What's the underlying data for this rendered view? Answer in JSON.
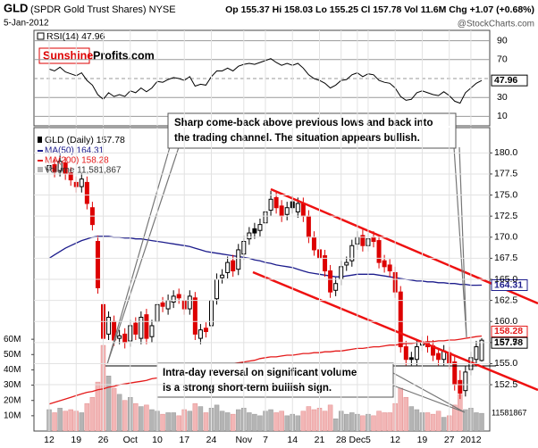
{
  "header": {
    "title": "GLD",
    "subtitle": "(SPDR Gold Trust Shares) NYSE",
    "date": "5-Jan-2012",
    "quote": "Op 155.37 Hi 158.03 Lo 155.25 Cl 157.78 Vol 11.6M Chg +1.07 (+0.68%)",
    "watermark": "@StockCharts.com"
  },
  "logo": {
    "part1": "Sunshine",
    "part2": "Profits.com"
  },
  "annotations": [
    {
      "lines": [
        "Sharp come-back above previous lows and back into",
        "the trading channel. The situation appears bullish."
      ]
    },
    {
      "lines": [
        "Intra-day reversal on significant volume",
        "is a strong short-term bullish sign."
      ]
    }
  ],
  "chart_data": {
    "type": "candlestick",
    "name": "GLD (Daily) 157.78",
    "up_color": "#000000",
    "down_color": "#dd0000",
    "categories": [
      "12",
      null,
      null,
      null,
      null,
      "19",
      null,
      null,
      null,
      null,
      "26",
      null,
      null,
      null,
      null,
      "Oct",
      null,
      null,
      null,
      null,
      "10",
      null,
      null,
      null,
      null,
      "17",
      null,
      null,
      null,
      null,
      "24",
      null,
      null,
      null,
      null,
      null,
      "Nov",
      null,
      null,
      null,
      "7",
      null,
      null,
      null,
      null,
      "14",
      null,
      null,
      null,
      null,
      "21",
      null,
      null,
      null,
      "28",
      null,
      null,
      "Dec",
      null,
      "5",
      null,
      null,
      null,
      null,
      "12",
      null,
      null,
      null,
      null,
      "19",
      null,
      null,
      null,
      null,
      "27",
      null,
      null,
      null,
      "2012",
      null,
      null
    ],
    "open": [
      178.0,
      178.6,
      177.9,
      178.8,
      177.6,
      176.5,
      176.0,
      176.5,
      173.5,
      169.5,
      162.0,
      158.5,
      160.0,
      158.0,
      158.5,
      157.7,
      159.8,
      158.0,
      160.8,
      158.2,
      160.0,
      162.2,
      161.5,
      162.3,
      163.2,
      162.5,
      161.5,
      162.8,
      158.0,
      159.2,
      159.5,
      162.7,
      165.2,
      165.8,
      167.2,
      166.2,
      168.0,
      169.8,
      171.0,
      170.8,
      171.7,
      173.2,
      174.7,
      173.7,
      172.7,
      174.2,
      173.0,
      174.0,
      172.5,
      170.0,
      168.5,
      167.8,
      166.0,
      163.7,
      165.0,
      166.7,
      167.2,
      169.2,
      170.2,
      169.0,
      170.0,
      169.6,
      167.2,
      166.7,
      165.8,
      163.5,
      157.0,
      155.7,
      155.5,
      157.2,
      157.6,
      157.1,
      156.2,
      155.5,
      156.3,
      155.2,
      153.0,
      151.8,
      154.3,
      155.5,
      155.37
    ],
    "high": [
      179.2,
      179.3,
      179.7,
      179.5,
      178.3,
      177.2,
      177.6,
      177.2,
      174.2,
      170.2,
      163.5,
      161.2,
      160.7,
      159.0,
      159.2,
      160.2,
      160.5,
      161.2,
      161.5,
      160.2,
      162.7,
      162.9,
      163.2,
      163.7,
      163.9,
      163.2,
      163.7,
      163.5,
      159.7,
      159.9,
      163.2,
      165.7,
      166.2,
      167.7,
      167.9,
      169.2,
      170.2,
      171.2,
      171.7,
      172.2,
      173.7,
      175.5,
      175.4,
      174.4,
      174.2,
      174.9,
      174.7,
      174.7,
      173.2,
      170.7,
      169.2,
      168.5,
      166.7,
      165.2,
      167.2,
      167.7,
      169.7,
      170.7,
      170.9,
      170.5,
      170.7,
      170.3,
      167.9,
      167.4,
      166.5,
      164.2,
      157.7,
      156.4,
      157.7,
      158.2,
      158.3,
      157.8,
      156.9,
      157.2,
      157.0,
      155.9,
      154.2,
      154.7,
      156.4,
      157.7,
      158.03
    ],
    "low": [
      177.3,
      177.1,
      177.2,
      176.8,
      176.1,
      175.3,
      175.3,
      173.3,
      170.8,
      163.3,
      153.5,
      157.8,
      157.1,
      157.3,
      156.8,
      157.0,
      157.8,
      157.3,
      157.3,
      157.5,
      159.3,
      161.1,
      160.8,
      161.6,
      162.1,
      160.8,
      160.8,
      157.8,
      157.3,
      158.1,
      158.8,
      162.0,
      164.5,
      165.1,
      165.3,
      165.5,
      167.3,
      169.1,
      169.8,
      170.1,
      171.0,
      172.5,
      172.8,
      171.8,
      172.0,
      172.8,
      172.3,
      171.8,
      169.3,
      167.8,
      166.8,
      165.3,
      162.8,
      163.0,
      164.3,
      166.0,
      166.5,
      168.5,
      168.3,
      168.3,
      168.8,
      166.3,
      165.8,
      165.3,
      162.8,
      156.3,
      154.8,
      154.8,
      154.8,
      156.5,
      156.3,
      155.3,
      154.8,
      154.8,
      154.3,
      151.8,
      150.8,
      151.1,
      153.6,
      154.8,
      155.25
    ],
    "close": [
      178.5,
      177.8,
      179.0,
      177.5,
      176.8,
      176.0,
      176.9,
      174.0,
      171.5,
      164.0,
      158.0,
      160.5,
      157.8,
      158.3,
      157.5,
      159.5,
      158.5,
      160.5,
      158.0,
      159.5,
      162.0,
      161.8,
      162.5,
      163.0,
      162.8,
      161.5,
      163.0,
      158.5,
      159.0,
      158.8,
      162.5,
      165.0,
      165.5,
      167.0,
      166.0,
      168.5,
      169.5,
      170.5,
      170.5,
      171.5,
      173.0,
      174.5,
      173.5,
      172.5,
      173.5,
      173.5,
      174.0,
      172.5,
      170.0,
      168.5,
      167.5,
      166.0,
      163.5,
      164.5,
      166.5,
      167.0,
      169.0,
      170.0,
      169.0,
      169.8,
      169.5,
      167.0,
      166.5,
      166.0,
      163.5,
      157.0,
      155.5,
      155.5,
      157.0,
      157.5,
      157.0,
      156.0,
      155.5,
      156.5,
      155.0,
      152.5,
      151.5,
      154.0,
      155.7,
      157.0,
      157.78
    ],
    "ylim": [
      147,
      183
    ],
    "yticks": [
      152.5,
      {
        "value": 155,
        "label": "155.0"
      },
      157.5,
      {
        "value": 160,
        "label": "160.0"
      },
      162.5,
      {
        "value": 165,
        "label": "165.0"
      },
      167.5,
      {
        "value": 170,
        "label": "170.0"
      },
      172.5,
      {
        "value": 175,
        "label": "175.0"
      },
      177.5,
      {
        "value": 180,
        "label": "180.0"
      }
    ],
    "grid": true,
    "overlays": [
      {
        "name": "MA(50) 164.31",
        "color": "#1c1c8c",
        "values": [
          167.5,
          167.9,
          168.3,
          168.7,
          169.0,
          169.3,
          169.6,
          169.8,
          170.0,
          170.1,
          170.1,
          170.1,
          170.0,
          170.0,
          169.9,
          169.9,
          169.8,
          169.8,
          169.7,
          169.6,
          169.5,
          169.4,
          169.3,
          169.2,
          169.1,
          169.0,
          168.9,
          168.7,
          168.5,
          168.3,
          168.2,
          168.1,
          168.0,
          167.9,
          167.8,
          167.7,
          167.6,
          167.5,
          167.3,
          167.2,
          167.0,
          166.9,
          166.7,
          166.6,
          166.5,
          166.4,
          166.2,
          166.0,
          165.8,
          165.7,
          165.6,
          165.5,
          165.4,
          165.3,
          165.3,
          165.4,
          165.5,
          165.6,
          165.6,
          165.6,
          165.6,
          165.5,
          165.4,
          165.3,
          165.2,
          165.1,
          165.0,
          164.9,
          164.8,
          164.8,
          164.7,
          164.7,
          164.6,
          164.6,
          164.5,
          164.5,
          164.4,
          164.4,
          164.3,
          164.3,
          164.31
        ]
      },
      {
        "name": "MA(200) 158.28",
        "color": "#e41a1a",
        "values": [
          150.2,
          150.4,
          150.6,
          150.8,
          151.0,
          151.2,
          151.4,
          151.6,
          151.7,
          151.9,
          152.0,
          152.2,
          152.3,
          152.5,
          152.6,
          152.7,
          152.8,
          152.9,
          153.0,
          153.2,
          153.3,
          153.4,
          153.6,
          153.7,
          153.9,
          154.0,
          154.1,
          154.2,
          154.3,
          154.5,
          154.6,
          154.7,
          154.8,
          154.9,
          155.0,
          155.1,
          155.2,
          155.3,
          155.4,
          155.6,
          155.7,
          155.8,
          155.8,
          155.9,
          156.0,
          156.0,
          156.1,
          156.2,
          156.2,
          156.3,
          156.3,
          156.4,
          156.4,
          156.5,
          156.5,
          156.6,
          156.7,
          156.8,
          156.8,
          156.9,
          157.0,
          157.0,
          157.1,
          157.2,
          157.2,
          157.3,
          157.4,
          157.4,
          157.5,
          157.5,
          157.6,
          157.6,
          157.7,
          157.7,
          157.8,
          157.8,
          157.9,
          158.0,
          158.1,
          158.2,
          158.28
        ]
      }
    ],
    "volume": {
      "name": "Volume 11,581,867",
      "up_color": "#b4b4b4",
      "down_color": "#f2b6b6",
      "values": [
        14000000,
        12000000,
        15000000,
        13000000,
        14000000,
        13000000,
        12000000,
        18000000,
        22000000,
        32000000,
        56000000,
        36000000,
        28000000,
        24000000,
        20000000,
        22000000,
        18000000,
        16000000,
        17000000,
        14000000,
        13000000,
        11000000,
        12000000,
        12000000,
        10000000,
        14000000,
        13000000,
        18000000,
        16000000,
        12000000,
        15000000,
        17000000,
        13000000,
        12000000,
        11000000,
        14000000,
        15000000,
        12000000,
        11000000,
        10000000,
        13000000,
        14000000,
        12000000,
        13000000,
        10000000,
        11000000,
        10000000,
        13000000,
        16000000,
        14000000,
        15000000,
        13000000,
        17000000,
        8000000,
        13000000,
        11000000,
        12000000,
        11000000,
        10000000,
        11000000,
        10000000,
        13000000,
        12000000,
        12000000,
        18000000,
        28000000,
        22000000,
        16000000,
        14000000,
        12000000,
        12000000,
        11000000,
        13000000,
        9000000,
        10000000,
        17000000,
        24000000,
        14000000,
        15000000,
        12000000,
        11581867
      ],
      "ylim": [
        0,
        70000000
      ],
      "yticks": [
        {
          "value": 10000000,
          "label": "10M"
        },
        {
          "value": 20000000,
          "label": "20M"
        },
        {
          "value": 30000000,
          "label": "30M"
        },
        {
          "value": 40000000,
          "label": "40M"
        },
        {
          "value": 50000000,
          "label": "50M"
        },
        {
          "value": 60000000,
          "label": "60M"
        }
      ]
    },
    "rsi": {
      "name": "RSI(14) 47.96",
      "color": "#000000",
      "values": [
        60,
        58,
        62,
        57,
        55,
        53,
        56,
        48,
        43,
        33,
        28,
        35,
        31,
        33,
        31,
        37,
        35,
        40,
        36,
        40,
        47,
        46,
        49,
        51,
        50,
        48,
        52,
        42,
        44,
        43,
        52,
        58,
        58,
        61,
        58,
        63,
        65,
        66,
        65,
        67,
        69,
        71,
        67,
        64,
        66,
        64,
        66,
        61,
        54,
        50,
        48,
        45,
        40,
        43,
        48,
        49,
        54,
        56,
        52,
        55,
        54,
        48,
        46,
        45,
        40,
        31,
        27,
        28,
        35,
        37,
        35,
        33,
        32,
        36,
        32,
        26,
        24,
        35,
        40,
        45,
        47.96
      ],
      "ylim": [
        0,
        100
      ],
      "yticks": [
        10,
        30,
        50,
        70,
        90
      ]
    }
  }
}
